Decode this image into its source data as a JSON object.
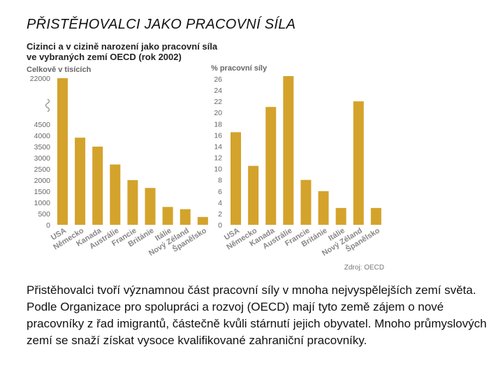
{
  "slide": {
    "title": "PŘISTĚHOVALCI JAKO PRACOVNÍ SÍLA",
    "body": "Přistěhovalci tvoří významnou část pracovní síly v mnoha nejvyspělejších zemí světa. Podle Organizace pro spolupráci a rozvoj (OECD) mají tyto země zájem o nové pracovníky z řad imigrantů, částečně kvůli stárnutí jejich obyvatel. Mnoho průmyslových zemí se snaží získat vysoce kvalifikované zahraniční pracovníky."
  },
  "figure": {
    "title_line1": "Cizinci a v cizině narození jako pracovní síla",
    "title_line2": "ve vybraných zemí OECD (rok 2002)",
    "source": "Zdroj: OECD",
    "bar_color": "#d4a32c"
  },
  "chart_data": [
    {
      "type": "bar",
      "ylabel": "Celkově v tisících",
      "categories": [
        "USA",
        "Německo",
        "Kanada",
        "Austrálie",
        "Francie",
        "Británie",
        "Itálie",
        "Nový Zéland",
        "Španělsko"
      ],
      "values": [
        22000,
        3900,
        3500,
        2700,
        2000,
        1650,
        800,
        700,
        350
      ],
      "y_ticks": [
        "0",
        "500",
        "1000",
        "1500",
        "2000",
        "2500",
        "3000",
        "3500",
        "4000",
        "4500",
        "22000"
      ],
      "axis_break": {
        "between": [
          4500,
          22000
        ]
      },
      "ylim": [
        0,
        22000
      ]
    },
    {
      "type": "bar",
      "ylabel": "% pracovní síly",
      "categories": [
        "USA",
        "Německo",
        "Kanada",
        "Austrálie",
        "Francie",
        "Británie",
        "Itálie",
        "Nový Zéland",
        "Španělsko"
      ],
      "values": [
        16.5,
        10.5,
        21,
        26.5,
        8,
        6,
        3,
        22,
        3
      ],
      "y_ticks": [
        "0",
        "2",
        "4",
        "6",
        "8",
        "10",
        "12",
        "14",
        "16",
        "18",
        "20",
        "22",
        "24",
        "26"
      ],
      "ylim": [
        0,
        26
      ]
    }
  ]
}
